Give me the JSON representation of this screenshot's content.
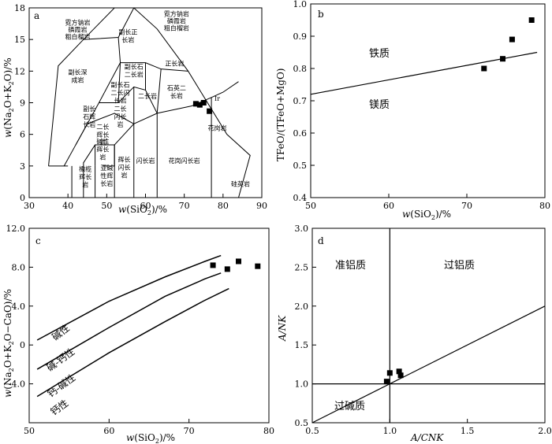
{
  "chart_data": [
    {
      "id": "a",
      "type": "scatter",
      "panel_label": "a",
      "xlabel": "w(SiO2)/%",
      "ylabel": "w(Na2O+K2O)/%",
      "xlim": [
        30,
        90
      ],
      "ylim": [
        0,
        18
      ],
      "xticks": [
        30,
        40,
        50,
        60,
        70,
        80,
        90
      ],
      "yticks": [
        0,
        3,
        6,
        9,
        12,
        15,
        18
      ],
      "field_labels": [
        "霓方钠岩/磷霞岩/粗白榴岩",
        "霓方钠岩/磷霞岩/粗白榴岩",
        "副长正长岩",
        "副长深成岩",
        "副长石二长岩",
        "正长岩",
        "副长石二长闪长岩",
        "二长岩",
        "石英二长岩",
        "副长石辉长岩",
        "二长闪长岩",
        "二长辉长岩",
        "碱性辉长岩",
        "橄榄辉长岩",
        "亚碱性辉长岩",
        "辉长闪长岩",
        "闪长岩",
        "花岗闪长岩",
        "花岗岩",
        "硅英岩",
        "Ir"
      ],
      "points": [
        [
          73.0,
          8.9
        ],
        [
          74.0,
          8.8
        ],
        [
          75.0,
          9.0
        ],
        [
          76.5,
          8.2
        ]
      ]
    },
    {
      "id": "b",
      "type": "scatter",
      "panel_label": "b",
      "xlabel": "w(SiO2)/%",
      "ylabel": "TFeO/(TFeO+MgO)",
      "xlim": [
        50,
        80
      ],
      "ylim": [
        0.4,
        1.0
      ],
      "xticks": [
        50,
        60,
        70,
        80
      ],
      "yticks": [
        0.4,
        0.5,
        0.6,
        0.7,
        0.8,
        0.9,
        1.0
      ],
      "region_labels": [
        "铁质",
        "镁质"
      ],
      "divider": [
        [
          50,
          0.72
        ],
        [
          79,
          0.85
        ]
      ],
      "points": [
        [
          72.2,
          0.8
        ],
        [
          74.6,
          0.83
        ],
        [
          75.8,
          0.89
        ],
        [
          78.3,
          0.95
        ]
      ]
    },
    {
      "id": "c",
      "type": "scatter",
      "panel_label": "c",
      "xlabel": "w(SiO2)/%",
      "ylabel": "w(Na2O+K2O-CaO)/%",
      "xlim": [
        50,
        80
      ],
      "ylim": [
        -8,
        12
      ],
      "xticks": [
        50,
        60,
        70,
        80
      ],
      "yticks": [
        "12.0",
        "8.0",
        "4.0",
        "0",
        "-4.0"
      ],
      "series_labels": [
        "碱性",
        "碱-钙性",
        "钙-碱性",
        "钙性"
      ],
      "points": [
        [
          73.0,
          8.2
        ],
        [
          74.8,
          7.8
        ],
        [
          76.2,
          8.6
        ],
        [
          78.6,
          8.1
        ]
      ]
    },
    {
      "id": "d",
      "type": "scatter",
      "panel_label": "d",
      "xlabel": "A/CNK",
      "ylabel": "A/NK",
      "xlim": [
        0.5,
        2.0
      ],
      "ylim": [
        0.5,
        3.0
      ],
      "xticks": [
        "0.5",
        "1.0",
        "1.5",
        "2.0"
      ],
      "yticks": [
        "0.5",
        "1.0",
        "1.5",
        "2.0",
        "2.5",
        "3.0"
      ],
      "region_labels": [
        "准铝质",
        "过铝质",
        "过碱质"
      ],
      "points": [
        [
          0.98,
          1.03
        ],
        [
          1.0,
          1.14
        ],
        [
          1.06,
          1.16
        ],
        [
          1.07,
          1.11
        ]
      ]
    }
  ],
  "colors": {
    "ink": "#000000",
    "background": "#ffffff"
  }
}
